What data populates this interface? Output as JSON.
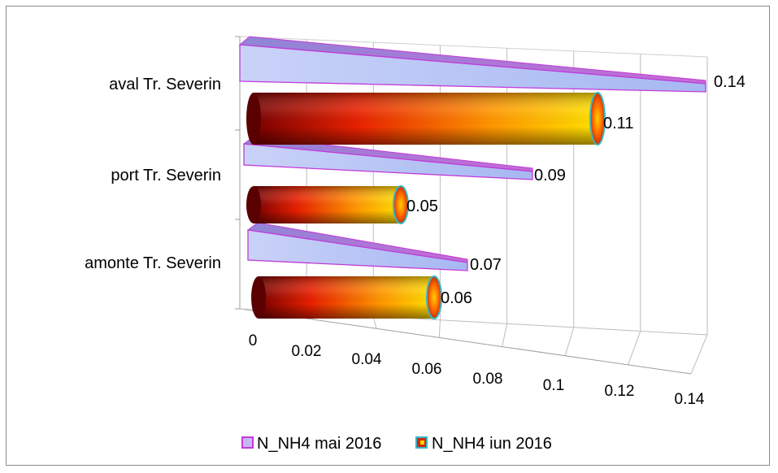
{
  "chart_data": {
    "type": "bar",
    "orientation": "horizontal",
    "style": "3d",
    "categories": [
      "aval  Tr. Severin",
      "port  Tr. Severin",
      "amonte Tr. Severin"
    ],
    "series": [
      {
        "name": "N_NH4 mai 2016",
        "shape": "pyramid",
        "values": [
          0.14,
          0.09,
          0.07
        ],
        "labels": [
          "0.14",
          "0.09",
          "0.07"
        ],
        "color": "#b8c4f4",
        "edge_color": "#c23ad8"
      },
      {
        "name": "N_NH4 iun  2016",
        "shape": "cylinder",
        "values": [
          0.11,
          0.05,
          0.06
        ],
        "labels": [
          "0.11",
          "0.05",
          "0.06"
        ],
        "color": "#ff5a00",
        "edge_color": "#38b6c8"
      }
    ],
    "xticks": [
      "0",
      "0.02",
      "0.04",
      "0.06",
      "0.08",
      "0.1",
      "0.12",
      "0.14"
    ],
    "xlim": [
      0,
      0.14
    ],
    "grid": true,
    "legend_position": "bottom",
    "title": "",
    "xlabel": "",
    "ylabel": ""
  }
}
